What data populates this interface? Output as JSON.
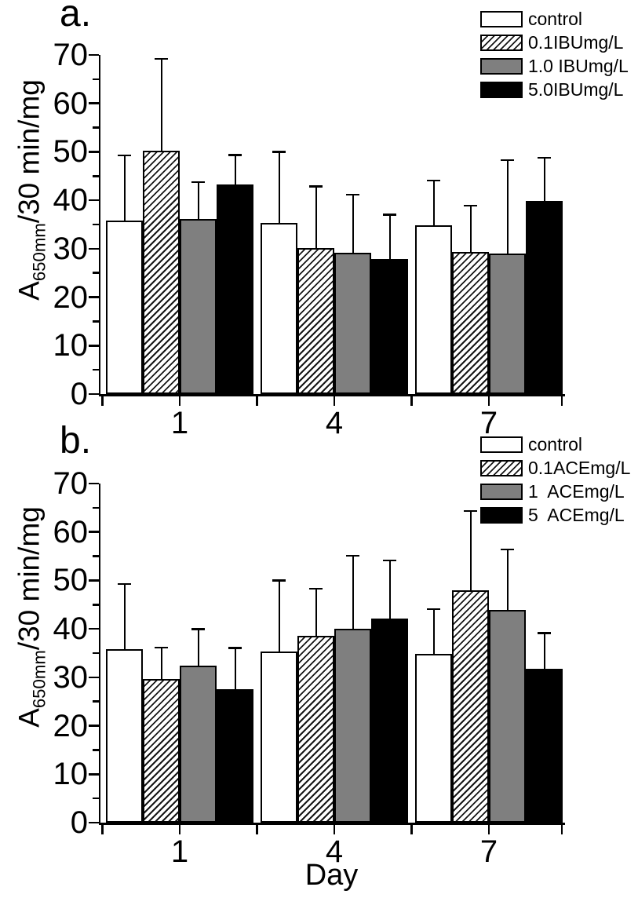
{
  "figure": {
    "background": "#ffffff",
    "colors": {
      "outline": "#000000",
      "bar_white": "#ffffff",
      "bar_hatch_stripe": "#161616",
      "bar_gray": "#7f7f7f",
      "bar_black": "#000000"
    }
  },
  "chart_data": [
    {
      "type": "bar",
      "panel_label": "a.",
      "title": "",
      "xlabel": "",
      "ylabel": {
        "base": "A",
        "subscript": "650mm",
        "rest": "/30 min/mg"
      },
      "ylim": [
        0,
        70
      ],
      "yticks": [
        0,
        10,
        20,
        30,
        40,
        50,
        60,
        70
      ],
      "y_minor_step": 5,
      "grid": false,
      "legend_position": "top-right",
      "error_bars": "upward standard deviation with caps",
      "categories": [
        "1",
        "4",
        "7"
      ],
      "series": [
        {
          "name": "control",
          "pattern": "white",
          "values": [
            35.8,
            35.4,
            34.9
          ],
          "error_plus": [
            13.5,
            14.6,
            9.2
          ]
        },
        {
          "name": "0.1IBUmg/L",
          "pattern": "hatch",
          "values": [
            50.2,
            30.1,
            29.4
          ],
          "error_plus": [
            19.0,
            12.8,
            9.5
          ]
        },
        {
          "name": "1.0 IBUmg/L",
          "pattern": "gray",
          "values": [
            36.1,
            29.1,
            29.0
          ],
          "error_plus": [
            7.7,
            12.1,
            19.3
          ]
        },
        {
          "name": "5.0IBUmg/L",
          "pattern": "black",
          "values": [
            43.3,
            27.8,
            39.9
          ],
          "error_plus": [
            6.1,
            9.3,
            8.9
          ]
        }
      ]
    },
    {
      "type": "bar",
      "panel_label": "b.",
      "title": "",
      "xlabel": "Day",
      "ylabel": {
        "base": "A",
        "subscript": "650mm",
        "rest": "/30 min/mg"
      },
      "ylim": [
        0,
        70
      ],
      "yticks": [
        0,
        10,
        20,
        30,
        40,
        50,
        60,
        70
      ],
      "y_minor_step": 5,
      "grid": false,
      "legend_position": "top-right",
      "error_bars": "upward standard deviation with caps",
      "categories": [
        "1",
        "4",
        "7"
      ],
      "series": [
        {
          "name": "control",
          "pattern": "white",
          "values": [
            35.8,
            35.4,
            34.9
          ],
          "error_plus": [
            13.5,
            14.6,
            9.2
          ]
        },
        {
          "name": "0.1ACEmg/L",
          "pattern": "hatch",
          "values": [
            29.7,
            38.6,
            47.9
          ],
          "error_plus": [
            6.5,
            9.7,
            16.5
          ]
        },
        {
          "name": "1  ACEmg/L",
          "pattern": "gray",
          "values": [
            32.4,
            40.0,
            43.9
          ],
          "error_plus": [
            7.6,
            15.1,
            12.5
          ]
        },
        {
          "name": "5  ACEmg/L",
          "pattern": "black",
          "values": [
            27.5,
            42.2,
            31.7
          ],
          "error_plus": [
            8.6,
            12.0,
            7.5
          ]
        }
      ]
    }
  ]
}
